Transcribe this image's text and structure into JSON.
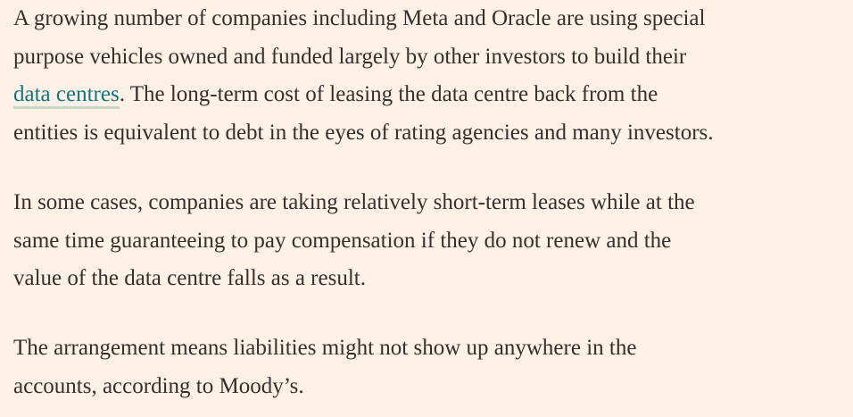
{
  "article": {
    "paragraphs": [
      {
        "lines": [
          "A growing number of companies including Meta and Oracle are using special",
          "purpose vehicles owned and funded largely by other investors to build their"
        ],
        "link_text": "data centres",
        "after_link": ". The long-term cost of leasing the data centre back from the",
        "last_line": "entities is equivalent to debt in the eyes of rating agencies and many investors."
      },
      {
        "lines": [
          "In some cases, companies are taking relatively short-term leases while at the",
          "same time guaranteeing to pay compensation if they do not renew and the",
          "value of the data centre falls as a result."
        ]
      },
      {
        "lines": [
          "The arrangement means liabilities might not show up anywhere in the",
          "accounts, according to Moody’s."
        ]
      }
    ]
  },
  "colors": {
    "background": "#FFF1E5",
    "text": "#33302E",
    "link": "#0D7680"
  }
}
